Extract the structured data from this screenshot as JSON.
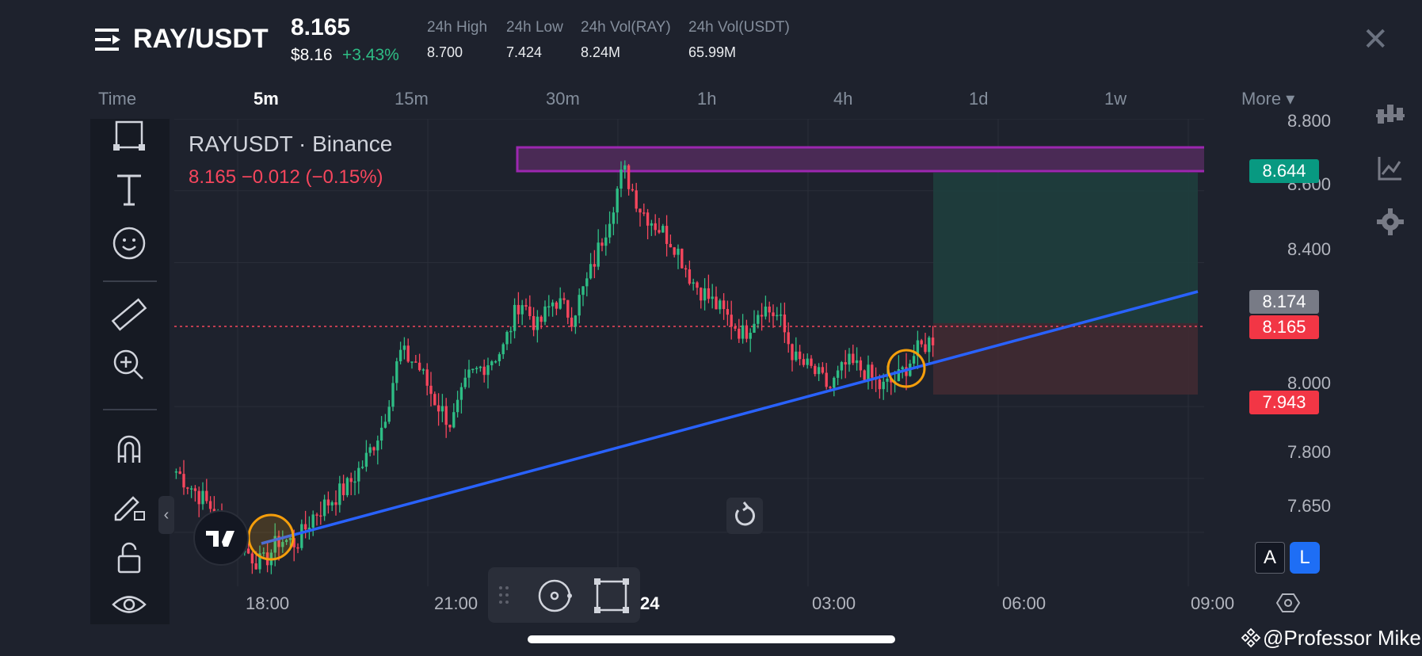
{
  "header": {
    "symbol": "RAY/USDT",
    "price": "8.165",
    "usd_price": "$8.16",
    "change_pct": "+3.43%",
    "stats": [
      {
        "label": "24h High",
        "value": "8.700"
      },
      {
        "label": "24h Low",
        "value": "7.424"
      },
      {
        "label": "24h Vol(RAY)",
        "value": "8.24M"
      },
      {
        "label": "24h Vol(USDT)",
        "value": "65.99M"
      }
    ],
    "close_glyph": "✕"
  },
  "timeframes": {
    "time_label": "Time",
    "items": [
      "5m",
      "15m",
      "30m",
      "1h",
      "4h",
      "1d",
      "1w"
    ],
    "active": "5m",
    "more_label": "More ▾"
  },
  "chart": {
    "title": "RAYUSDT · Binance",
    "last_line": "8.165  −0.012 (−0.15%)",
    "y_ticks": [
      "8.800",
      "8.600",
      "8.400",
      "8.000",
      "7.800",
      "7.650"
    ],
    "x_ticks": [
      "18:00",
      "21:00",
      "24",
      "03:00",
      "06:00",
      "09:00"
    ],
    "price_tags": [
      {
        "value": "8.644",
        "color": "#089981"
      },
      {
        "value": "8.174",
        "color": "#787b86"
      },
      {
        "value": "8.165",
        "color": "#f23645"
      },
      {
        "value": "7.943",
        "color": "#f23645"
      }
    ],
    "colors": {
      "up": "#2ebd85",
      "down": "#f6465d",
      "trendline": "#2962ff",
      "zone": "#9c27b0",
      "highlight": "#f59e0b"
    }
  },
  "chart_data": {
    "type": "candlestick",
    "symbol": "RAYUSDT",
    "exchange": "Binance",
    "interval": "5m",
    "ylim": [
      7.5,
      8.8
    ],
    "last_price": 8.165,
    "x_ticks": [
      "18:00",
      "21:00",
      "24",
      "03:00",
      "06:00",
      "09:00"
    ],
    "close_path": [
      7.82,
      7.77,
      7.72,
      7.66,
      7.6,
      7.56,
      7.63,
      7.62,
      7.7,
      7.74,
      7.78,
      7.85,
      7.95,
      8.15,
      8.12,
      8.02,
      7.95,
      8.08,
      8.12,
      8.16,
      8.3,
      8.22,
      8.3,
      8.25,
      8.36,
      8.5,
      8.66,
      8.55,
      8.5,
      8.45,
      8.35,
      8.3,
      8.25,
      8.2,
      8.28,
      8.25,
      8.13,
      8.1,
      8.05,
      8.12,
      8.1,
      8.05,
      8.08,
      8.15,
      8.19
    ],
    "trendline": {
      "start": [
        0.06,
        7.57
      ],
      "end": [
        0.95,
        8.23
      ]
    },
    "resistance_zone": [
      8.62,
      8.66
    ],
    "position": {
      "entry": 8.165,
      "target": 8.644,
      "stop": 7.943
    }
  },
  "toolbar": {
    "tools": [
      "rectangle-tool-icon",
      "text-tool-icon",
      "emoji-tool-icon",
      "ruler-icon",
      "zoom-in-icon",
      "magnet-icon",
      "draw-lock-icon",
      "unlock-icon",
      "eye-icon"
    ]
  },
  "right_panel": {
    "btn_a": "A",
    "btn_l": "L"
  },
  "watermark": "@Professor Mike"
}
